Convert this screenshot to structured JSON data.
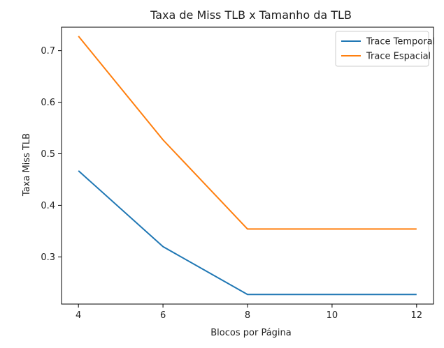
{
  "chart_data": {
    "type": "line",
    "title": "Taxa de Miss TLB x Tamanho da TLB",
    "xlabel": "Blocos por Página",
    "ylabel": "Taxa Miss TLB",
    "x": [
      4,
      6,
      8,
      10,
      12
    ],
    "xticks": [
      4,
      6,
      8,
      10,
      12
    ],
    "yticks": [
      0.3,
      0.4,
      0.5,
      0.6,
      0.7
    ],
    "xlim": [
      3.6,
      12.4
    ],
    "ylim": [
      0.2085,
      0.7455
    ],
    "grid": false,
    "legend_position": "top-right",
    "series": [
      {
        "name": "Trace Temporal",
        "color": "#1f77b4",
        "values": [
          0.467,
          0.32,
          0.227,
          0.227,
          0.227
        ]
      },
      {
        "name": "Trace Espacial",
        "color": "#ff7f0e",
        "values": [
          0.728,
          0.527,
          0.354,
          0.354,
          0.354
        ]
      }
    ]
  }
}
